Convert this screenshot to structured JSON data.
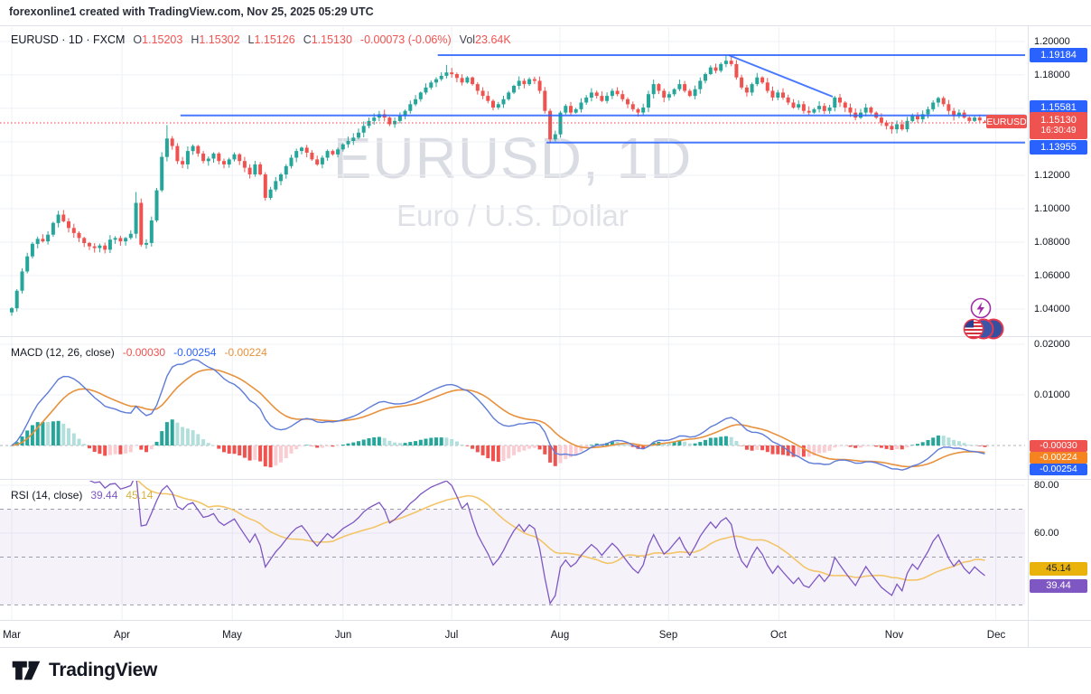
{
  "header": {
    "attribution": "forexonline1 created with TradingView.com, Nov 25, 2025 05:29 UTC"
  },
  "legend": {
    "symbol_title": "EURUSD · 1D · FXCM",
    "open_label": "O",
    "open": "1.15203",
    "high_label": "H",
    "high": "1.15302",
    "low_label": "L",
    "low": "1.15126",
    "close_label": "C",
    "close": "1.15130",
    "change": "-0.00073 (-0.06%)",
    "vol_label": "Vol",
    "volume": "23.64K"
  },
  "watermark": {
    "title": "EURUSD, 1D",
    "subtitle": "Euro / U.S. Dollar"
  },
  "price_axis": {
    "ticks": [
      {
        "label": "1.20000",
        "price": 1.2
      },
      {
        "label": "1.18000",
        "price": 1.18
      },
      {
        "label": "1.12000",
        "price": 1.12
      },
      {
        "label": "1.10000",
        "price": 1.1
      },
      {
        "label": "1.08000",
        "price": 1.08
      },
      {
        "label": "1.06000",
        "price": 1.06
      },
      {
        "label": "1.04000",
        "price": 1.04
      }
    ],
    "badges": {
      "resistance": "1.19184",
      "mid": "1.15581",
      "support": "1.13955",
      "last_price": "1.15130",
      "countdown": "16:30:49"
    },
    "symbol_label": "EURUSD"
  },
  "time_axis": {
    "months": [
      "Mar",
      "Apr",
      "May",
      "Jun",
      "Jul",
      "Aug",
      "Sep",
      "Oct",
      "Nov",
      "Dec"
    ]
  },
  "macd_panel": {
    "label": "MACD (12, 26, close)",
    "hist_value": "-0.00030",
    "macd_value": "-0.00254",
    "signal_value": "-0.00224",
    "ticks": [
      {
        "label": "0.02000",
        "value": 0.02
      },
      {
        "label": "0.01000",
        "value": 0.01
      }
    ],
    "badges": {
      "hist": "-0.00030",
      "signal": "-0.00224",
      "macd": "-0.00254"
    }
  },
  "rsi_panel": {
    "label": "RSI (14, close)",
    "rsi_value": "39.44",
    "ma_value": "45.14",
    "ticks": [
      {
        "label": "80.00",
        "value": 80
      },
      {
        "label": "60.00",
        "value": 60
      }
    ],
    "badges": {
      "ma": "45.14",
      "rsi": "39.44"
    }
  },
  "footer": {
    "brand": "TradingView"
  },
  "colors": {
    "up": "#26a69a",
    "down": "#ef5350",
    "blue_line": "#2962ff",
    "blue_badge": "#2962ff",
    "red_badge": "#ef5350",
    "orange_badge": "#f5831f",
    "purple_badge": "#7e57c2",
    "yellow_badge": "#eab30c",
    "macd_line": "#5e7cd7",
    "signal_line": "#e8913c",
    "hist_grow_above": "#26a69a",
    "hist_fall_above": "#b2dfdb",
    "hist_fall_below": "#ef5350",
    "hist_grow_below": "#fbcdd2",
    "rsi_line": "#7e57c2",
    "rsi_ma_line": "#f3c568",
    "grid": "#eef1f6",
    "separator": "#e0e3eb"
  },
  "chart_data": {
    "type": "candlestick",
    "symbol": "EURUSD",
    "exchange": "FXCM",
    "timeframe": "1D",
    "title": "Euro / U.S. Dollar, daily candles Mar-Nov 2025 with MACD(12,26,9) and RSI(14) panels",
    "last_candle": {
      "o": 1.15203,
      "h": 1.15302,
      "l": 1.15126,
      "c": 1.1513,
      "change": -0.00073,
      "change_pct": -0.06,
      "volume": "23.64K"
    },
    "price_range": [
      1.0238,
      1.2086
    ],
    "macd_range": [
      -0.00625,
      0.02125
    ],
    "rsi_range": [
      24.5,
      81.9
    ],
    "rsi_bands": [
      70,
      50,
      30
    ],
    "grid_prices": [
      1.2,
      1.18,
      1.16,
      1.14,
      1.12,
      1.1,
      1.08,
      1.06,
      1.04
    ],
    "months": {
      "labels": [
        "Mar",
        "Apr",
        "May",
        "Jun",
        "Jul",
        "Aug",
        "Sep",
        "Oct",
        "Nov",
        "Dec"
      ],
      "day_positions": [
        0,
        21.3,
        42.6,
        64.0,
        85.0,
        105.9,
        126.9,
        148.2,
        170.5,
        190.1
      ]
    },
    "levels": [
      {
        "price": 1.19184,
        "start_day": 82.3,
        "label": "1.19184"
      },
      {
        "price": 1.15581,
        "start_day": 32.6,
        "label": "1.15581"
      },
      {
        "price": 1.13955,
        "start_day": 103.3,
        "label": "1.13955"
      }
    ],
    "trendline": {
      "day1": 138.5,
      "price1": 1.19184,
      "day2": 158.6,
      "price2": 1.167
    },
    "price_line": 1.1513,
    "indicators": {
      "macd": {
        "fast": 12,
        "slow": 26,
        "signal": 9,
        "last_hist": -0.0003,
        "last_macd": -0.00254,
        "last_signal": -0.00224
      },
      "rsi": {
        "length": 14,
        "last": 39.44,
        "ma_last": 45.14
      }
    },
    "closes": [
      1.0405,
      1.051,
      1.0625,
      1.0715,
      1.079,
      1.082,
      1.0805,
      1.0845,
      1.0915,
      1.0965,
      1.0925,
      1.0885,
      1.0855,
      1.0825,
      1.0795,
      1.0775,
      1.0765,
      1.078,
      1.0755,
      1.0815,
      1.0825,
      1.0805,
      1.0825,
      1.085,
      1.1035,
      1.0785,
      1.0795,
      1.093,
      1.111,
      1.131,
      1.142,
      1.1375,
      1.1285,
      1.1265,
      1.1345,
      1.1375,
      1.133,
      1.1285,
      1.13,
      1.133,
      1.1285,
      1.1265,
      1.1295,
      1.1325,
      1.1285,
      1.1245,
      1.1205,
      1.1265,
      1.1205,
      1.1065,
      1.1115,
      1.1165,
      1.1205,
      1.1255,
      1.1305,
      1.1345,
      1.1365,
      1.1335,
      1.1295,
      1.1265,
      1.1305,
      1.1345,
      1.1325,
      1.1355,
      1.1385,
      1.1405,
      1.1425,
      1.1455,
      1.1495,
      1.1525,
      1.1545,
      1.1565,
      1.1545,
      1.1505,
      1.1525,
      1.1555,
      1.1585,
      1.1625,
      1.1655,
      1.1695,
      1.1725,
      1.1755,
      1.1775,
      1.1795,
      1.1815,
      1.1805,
      1.1782,
      1.1755,
      1.1785,
      1.1745,
      1.1705,
      1.1675,
      1.1645,
      1.1605,
      1.1625,
      1.1655,
      1.1695,
      1.1735,
      1.1765,
      1.1745,
      1.1775,
      1.1765,
      1.1705,
      1.1585,
      1.1415,
      1.1445,
      1.1575,
      1.1615,
      1.1575,
      1.1595,
      1.1635,
      1.1665,
      1.1695,
      1.1675,
      1.1645,
      1.1675,
      1.1705,
      1.1685,
      1.1655,
      1.1625,
      1.1595,
      1.1575,
      1.1605,
      1.1685,
      1.1745,
      1.1705,
      1.1665,
      1.1685,
      1.1715,
      1.1745,
      1.1705,
      1.1675,
      1.1715,
      1.1765,
      1.1805,
      1.1845,
      1.1825,
      1.1865,
      1.1885,
      1.1865,
      1.1785,
      1.1725,
      1.1695,
      1.1745,
      1.1785,
      1.1755,
      1.1705,
      1.1665,
      1.1695,
      1.1665,
      1.1635,
      1.1605,
      1.1625,
      1.1585,
      1.1575,
      1.1595,
      1.1615,
      1.1585,
      1.1605,
      1.1665,
      1.1635,
      1.1605,
      1.1575,
      1.1545,
      1.1575,
      1.1605,
      1.1575,
      1.1545,
      1.1515,
      1.1495,
      1.1475,
      1.1505,
      1.1475,
      1.1525,
      1.1555,
      1.1535,
      1.1565,
      1.1595,
      1.1635,
      1.1662,
      1.1625,
      1.1585,
      1.1555,
      1.1575,
      1.1545,
      1.1525,
      1.1545,
      1.1528,
      1.1513
    ],
    "specials": {
      "0": {
        "o": 1.038,
        "l": 1.036
      },
      "24": {
        "h": 1.11
      },
      "30": {
        "h": 1.15
      },
      "49": {
        "l": 1.1048
      },
      "84": {
        "h": 1.186
      },
      "104": {
        "l": 1.1392
      },
      "138": {
        "h": 1.19184
      },
      "172": {
        "l": 1.1466
      },
      "188": {
        "o": 1.15203,
        "h": 1.15302,
        "l": 1.15126,
        "c": 1.1513
      }
    }
  }
}
